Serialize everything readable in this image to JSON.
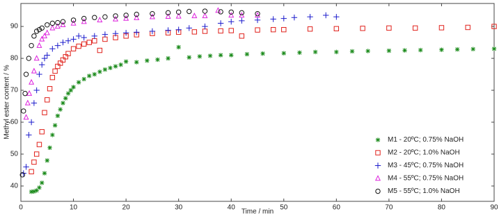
{
  "chart_data": {
    "type": "scatter",
    "xlabel": "Time / min",
    "ylabel": "Methyl ester content / %",
    "xlim": [
      0,
      90
    ],
    "ylim": [
      35.2,
      97.2
    ],
    "xticks": [
      0,
      10,
      20,
      30,
      40,
      50,
      60,
      70,
      80,
      90
    ],
    "yticks": [
      40,
      50,
      60,
      70,
      80,
      90
    ],
    "legend": "lower right",
    "series": [
      {
        "name": "M1  -  20ºC; 0.75% NaOH",
        "color": "#1a8a1a",
        "marker": "asterisk",
        "x": [
          2,
          2.5,
          3,
          3.5,
          4,
          4.5,
          5,
          5.5,
          6,
          6.5,
          7,
          7.5,
          8,
          8.5,
          9,
          9.5,
          10,
          11,
          12,
          13,
          14,
          15,
          16,
          17,
          18,
          19,
          20,
          22,
          24,
          26,
          28,
          30,
          32,
          34,
          36,
          38,
          40,
          43,
          46,
          50,
          53,
          56,
          60,
          63,
          66,
          70,
          73,
          76,
          80,
          83,
          86,
          90
        ],
        "values": [
          38.2,
          38.3,
          38.6,
          39.5,
          41,
          44,
          48,
          52,
          56,
          59,
          62,
          64,
          66,
          67.5,
          69,
          70,
          71,
          72.5,
          73.5,
          74.5,
          75,
          75.8,
          76.5,
          77,
          77.5,
          78,
          79,
          78.8,
          79.3,
          79.6,
          80,
          83.5,
          80.3,
          80.6,
          80.8,
          81,
          81,
          81.3,
          81.5,
          81.6,
          81.8,
          82,
          82,
          82.2,
          82.3,
          82.4,
          82.5,
          82.6,
          82.7,
          82.8,
          82.9,
          83
        ]
      },
      {
        "name": "M2  -  20ºC; 1.0% NaOH",
        "color": "#e0201a",
        "marker": "square",
        "x": [
          2,
          2.5,
          3,
          3.5,
          4,
          4.5,
          5,
          5.5,
          6,
          6.5,
          7,
          7.5,
          8,
          8.5,
          9,
          10,
          11,
          12,
          13,
          14,
          15,
          16,
          18,
          20,
          22,
          25,
          28,
          30,
          33,
          35,
          38,
          40,
          42,
          45,
          48,
          50,
          55,
          60,
          65,
          70,
          75,
          80,
          85,
          90
        ],
        "values": [
          44.5,
          47.5,
          50,
          53,
          57,
          63,
          67,
          70.5,
          74,
          76,
          77.5,
          78.5,
          79.5,
          80.5,
          81.5,
          83,
          83.8,
          84.5,
          85,
          85.5,
          82.5,
          86,
          86.5,
          87,
          87.4,
          87.8,
          88,
          88.2,
          88.3,
          88.5,
          88.6,
          88.7,
          87,
          88.9,
          89,
          89,
          89.2,
          89.3,
          89.4,
          89.5,
          89.5,
          89.6,
          89.7,
          90
        ]
      },
      {
        "name": "M3  -  45ºC; 0.75% NaOH",
        "color": "#1a1acc",
        "marker": "plus",
        "x": [
          0.5,
          1,
          1.5,
          2,
          2.5,
          3,
          3.5,
          4,
          4.5,
          5,
          6,
          7,
          8,
          9,
          10,
          11,
          12,
          14,
          16,
          18,
          20,
          22,
          25,
          28,
          30,
          32,
          35,
          38,
          40,
          42,
          45,
          48,
          50,
          52,
          55,
          58,
          60
        ],
        "values": [
          44,
          46,
          56,
          60,
          66,
          70,
          75,
          78,
          80,
          81,
          83,
          84,
          85,
          85.5,
          86,
          87,
          86.5,
          87,
          87.5,
          87.8,
          88,
          88.2,
          88.5,
          88.8,
          89,
          89.5,
          90,
          91,
          91.5,
          91.8,
          92,
          92.3,
          92.5,
          92.8,
          93,
          93.5,
          93
        ]
      },
      {
        "name": "M4  -  55ºC; 0.75% NaOH",
        "color": "#dd22dd",
        "marker": "triangle",
        "x": [
          1,
          1.3,
          1.6,
          2,
          2.5,
          3,
          3.5,
          4,
          4.5,
          5,
          6,
          7,
          8,
          10,
          12,
          15,
          18,
          20,
          22,
          25,
          28,
          30,
          33,
          35,
          37.5,
          40,
          42,
          45
        ],
        "values": [
          61.5,
          66,
          69,
          72.5,
          76,
          80,
          84,
          86,
          87,
          88,
          89.5,
          90,
          90.5,
          91,
          91.5,
          92,
          92.3,
          92.5,
          92.7,
          93,
          93.1,
          93.2,
          93.3,
          93.3,
          95,
          93.5,
          93.5,
          93.5
        ]
      },
      {
        "name": "M5  -  55ºC; 1.0% NaOH",
        "color": "#111111",
        "marker": "circle",
        "x": [
          0.3,
          0.5,
          0.8,
          1,
          1.5,
          2,
          2.5,
          3,
          3.5,
          4,
          5,
          6,
          7,
          8,
          10,
          12,
          14,
          16,
          18,
          20,
          22,
          25,
          28,
          30,
          32,
          35,
          38,
          40,
          42,
          45
        ],
        "values": [
          43.5,
          63.5,
          69,
          75,
          80,
          84,
          87,
          88.5,
          89,
          89.5,
          90.5,
          91,
          91.2,
          91.5,
          92,
          92.5,
          92.8,
          93,
          93.3,
          93.5,
          93.8,
          94,
          94.3,
          94.5,
          94.7,
          94.8,
          94.6,
          94.5,
          94.3,
          94
        ]
      }
    ]
  }
}
